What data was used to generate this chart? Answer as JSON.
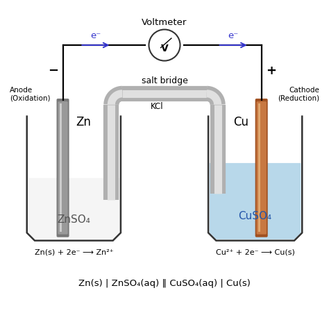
{
  "bg_color": "#ffffff",
  "text_color": "#000000",
  "blue_color": "#3333cc",
  "wire_color": "#000000",
  "beaker_edge": "#333333",
  "solution_zn_color": "#f5f5f5",
  "solution_cu_color": "#b8d8ea",
  "zn_electrode_dark": "#777777",
  "zn_electrode_mid": "#999999",
  "zn_electrode_light": "#cccccc",
  "cu_electrode_dark": "#a05020",
  "cu_electrode_mid": "#c87841",
  "cu_electrode_light": "#e0a870",
  "salt_bridge_outer": "#b0b0b0",
  "salt_bridge_inner": "#e0e0e0",
  "title_voltmeter": "Voltmeter",
  "label_anode": "Anode\n(Oxidation)",
  "label_cathode": "Cathode\n(Reduction)",
  "label_minus": "−",
  "label_plus": "+",
  "label_zn": "Zn",
  "label_cu": "Cu",
  "label_znso4": "ZnSO₄",
  "label_cuso4": "CuSO₄",
  "label_salt_bridge": "salt bridge",
  "label_kcl": "KCl",
  "label_V": "V",
  "label_e_left": "e⁻",
  "label_e_right": "e⁻",
  "eq_left": "Zn(s) + 2e⁻ ⟶ Zn²⁺",
  "eq_right": "Cu²⁺ + 2e⁻ ⟶ Cu(s)",
  "eq_bottom": "Zn(s) | ZnSO₄(aq) ‖ CuSO₄(aq) | Cu(s)",
  "figsize": [
    4.74,
    4.52
  ],
  "dpi": 100
}
